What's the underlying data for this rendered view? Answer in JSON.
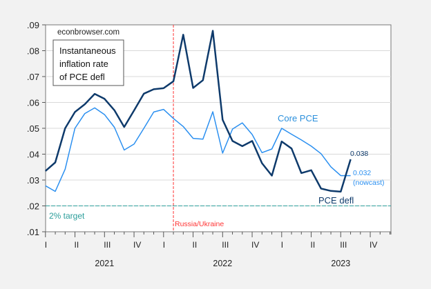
{
  "chart_data": {
    "type": "line",
    "title": "",
    "xlabel": "",
    "ylabel": "",
    "ylim": [
      0.01,
      0.09
    ],
    "yticks": [
      ".01",
      ".02",
      ".03",
      ".04",
      ".05",
      ".06",
      ".07",
      ".08",
      ".09"
    ],
    "grid": true,
    "x_start": "2021-01",
    "x_end": "2023-12",
    "x_frequency": "monthly",
    "quarter_labels": [
      "I",
      "II",
      "III",
      "IV",
      "I",
      "II",
      "III",
      "IV",
      "I",
      "II",
      "III",
      "IV"
    ],
    "year_labels": [
      "2021",
      "2022",
      "2023"
    ],
    "series": [
      {
        "name": "PCE defl",
        "color": "#0e3a6b",
        "values": [
          0.0335,
          0.0368,
          0.05,
          0.0563,
          0.0593,
          0.0633,
          0.0614,
          0.057,
          0.0505,
          0.0569,
          0.0634,
          0.0651,
          0.0655,
          0.0682,
          0.0862,
          0.0656,
          0.0686,
          0.0877,
          0.0533,
          0.0451,
          0.0431,
          0.0451,
          0.0365,
          0.0317,
          0.0449,
          0.0422,
          0.0327,
          0.0338,
          0.0267,
          0.0258,
          0.0255,
          0.038
        ]
      },
      {
        "name": "Core PCE",
        "color": "#2a8ff0",
        "values": [
          0.0278,
          0.0256,
          0.0342,
          0.05,
          0.0557,
          0.0579,
          0.0553,
          0.0504,
          0.0416,
          0.0439,
          0.05,
          0.0563,
          0.0573,
          0.0538,
          0.0507,
          0.0461,
          0.0458,
          0.0564,
          0.0404,
          0.0497,
          0.0521,
          0.0476,
          0.0406,
          0.042,
          0.05,
          0.0477,
          0.0455,
          0.0431,
          0.0402,
          0.0351,
          0.0317,
          0.0317
        ]
      }
    ],
    "reference_line": {
      "value": 0.02,
      "label": "2% target",
      "color": "#2a9d9a"
    },
    "event_line": {
      "date": "2022-02",
      "label": "Russia/Ukraine",
      "color": "#ff3333"
    },
    "annotations": {
      "source": "econbrowser.com",
      "box_lines": [
        "Instantaneous",
        "inflation rate",
        "of PCE defl"
      ],
      "pce_last": "0.038",
      "core_last": "0.032",
      "core_last_note": "(nowcast)"
    }
  }
}
